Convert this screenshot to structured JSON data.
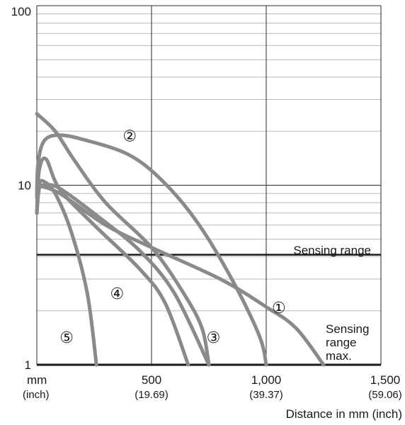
{
  "chart_data": {
    "type": "line",
    "xlabel": "Distance in mm (inch)",
    "x_unit_label": "mm",
    "x_unit_sub": "(inch)",
    "xlim": [
      0,
      1500
    ],
    "ylim": [
      1,
      100
    ],
    "y_scale": "log",
    "grid": true,
    "x_ticks": [
      {
        "value": 500,
        "label": "500",
        "sub": "(19.69)"
      },
      {
        "value": 1000,
        "label": "1,000",
        "sub": "(39.37)"
      },
      {
        "value": 1500,
        "label": "1,500",
        "sub": "(59.06)"
      }
    ],
    "y_ticks": [
      {
        "value": 1,
        "label": "1"
      },
      {
        "value": 10,
        "label": "10"
      },
      {
        "value": 100,
        "label": "100"
      }
    ],
    "thresholds": [
      {
        "label": "Sensing range",
        "y": 4.1
      },
      {
        "label_lines": [
          "Sensing",
          "range",
          "max."
        ],
        "y": 1
      }
    ],
    "series": [
      {
        "label": "①",
        "points": [
          [
            0,
            10
          ],
          [
            100,
            9
          ],
          [
            300,
            6
          ],
          [
            500,
            4.5
          ],
          [
            800,
            3.0
          ],
          [
            1000,
            2.1
          ],
          [
            1130,
            1.6
          ],
          [
            1250,
            1.0
          ]
        ],
        "label_pos": [
          1055,
          2.05
        ]
      },
      {
        "label": "②",
        "points": [
          [
            0,
            8.5
          ],
          [
            5,
            13
          ],
          [
            30,
            17.5
          ],
          [
            90,
            19.0
          ],
          [
            200,
            18.0
          ],
          [
            400,
            14.8
          ],
          [
            550,
            10.5
          ],
          [
            700,
            6.2
          ],
          [
            850,
            3.0
          ],
          [
            970,
            1.45
          ],
          [
            1000,
            1.0
          ]
        ],
        "label_pos": [
          405,
          18.5
        ]
      },
      {
        "label": "③",
        "points": [
          [
            0,
            7
          ],
          [
            10,
            9.5
          ],
          [
            30,
            10
          ],
          [
            100,
            9.6
          ],
          [
            280,
            6.5
          ],
          [
            450,
            4.3
          ],
          [
            600,
            2.5
          ],
          [
            750,
            1.0
          ]
        ],
        "label_pos": [
          770,
          1.4
        ]
      },
      {
        "label": "④",
        "points": [
          [
            0,
            7
          ],
          [
            10,
            12
          ],
          [
            40,
            14
          ],
          [
            100,
            9.5
          ],
          [
            250,
            6.0
          ],
          [
            450,
            3.4
          ],
          [
            560,
            2.2
          ],
          [
            660,
            1.0
          ]
        ],
        "label_pos": [
          350,
          2.45
        ]
      },
      {
        "label": "⑤",
        "points": [
          [
            0,
            25
          ],
          [
            80,
            20
          ],
          [
            160,
            14
          ],
          [
            300,
            8
          ],
          [
            500,
            4.5
          ],
          [
            640,
            2.5
          ],
          [
            720,
            1.6
          ],
          [
            750,
            1.0
          ]
        ],
        "label_pos": [
          130,
          1.4
        ]
      },
      {
        "label": "",
        "points": [
          [
            0,
            7
          ],
          [
            10,
            10
          ],
          [
            30,
            10.5
          ],
          [
            80,
            9
          ],
          [
            150,
            5.5
          ],
          [
            220,
            2.5
          ],
          [
            260,
            1.0
          ]
        ]
      }
    ]
  }
}
